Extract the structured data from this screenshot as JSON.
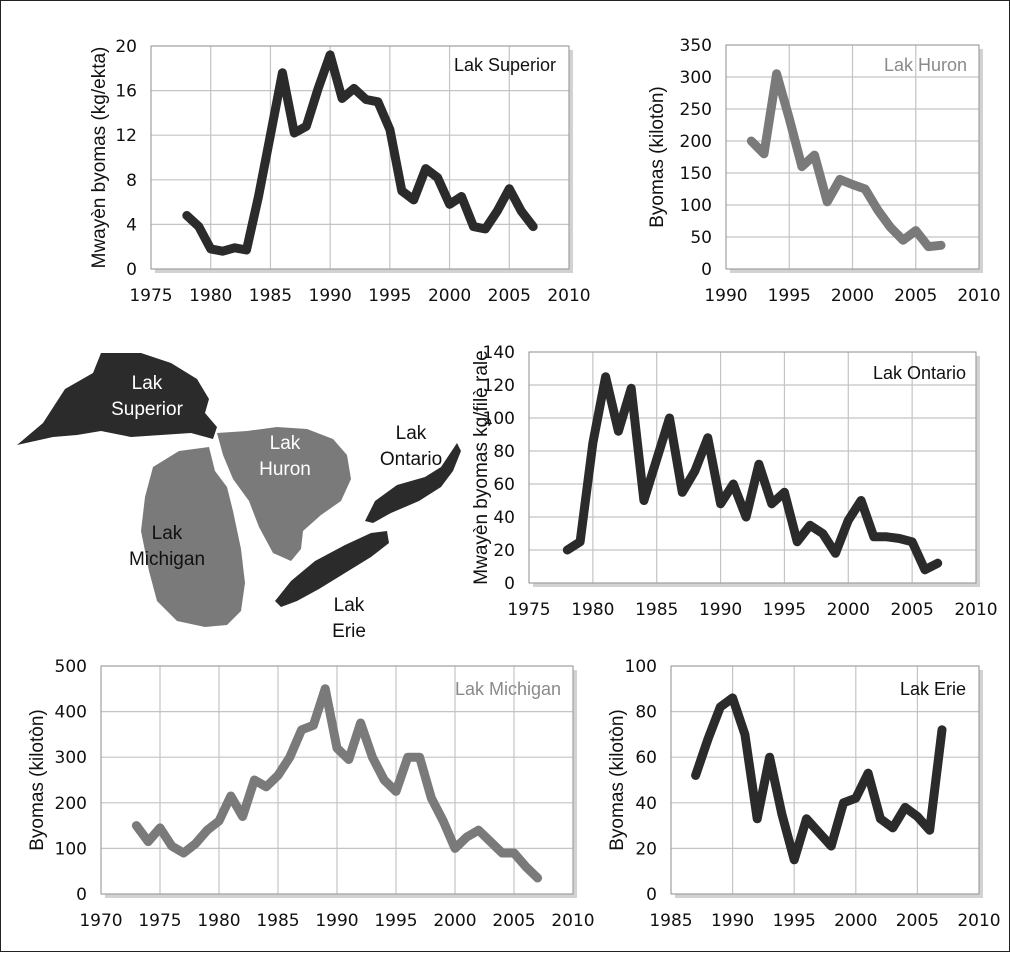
{
  "colors": {
    "dark": "#2b2b2b",
    "gray": "#7a7a7a",
    "grid": "#c4c4c4",
    "frameShadow": "#d2d2d2"
  },
  "map": {
    "labels": {
      "superior": [
        "Lak",
        "Superior"
      ],
      "huron": [
        "Lak",
        "Huron"
      ],
      "ontario": [
        "Lak",
        "Ontario"
      ],
      "michigan": [
        "Lak",
        "Michigan"
      ],
      "erie": [
        "Lak",
        "Erie"
      ]
    }
  },
  "chart_data": [
    {
      "id": "superior",
      "type": "line",
      "title": "Lak Superior",
      "ylabel": "Mwayèn byomas (kg/ekta)",
      "xlabel": "",
      "xlim": [
        1975,
        2010
      ],
      "ylim": [
        0,
        20
      ],
      "xticks": [
        1975,
        1980,
        1985,
        1990,
        1995,
        2000,
        2005,
        2010
      ],
      "yticks": [
        0,
        4,
        8,
        12,
        16,
        20
      ],
      "color": "#2b2b2b",
      "title_color": "#111111",
      "series": [
        {
          "x": [
            1978,
            1979,
            1980,
            1981,
            1982,
            1983,
            1984,
            1985,
            1986,
            1987,
            1988,
            1989,
            1990,
            1991,
            1992,
            1993,
            1994,
            1995,
            1996,
            1997,
            1998,
            1999,
            2000,
            2001,
            2002,
            2003,
            2004,
            2005,
            2006,
            2007
          ],
          "y": [
            4.8,
            3.8,
            1.8,
            1.6,
            1.9,
            1.7,
            6.5,
            12,
            17.6,
            12.2,
            12.8,
            16.2,
            19.2,
            15.3,
            16.2,
            15.2,
            15,
            12.5,
            7,
            6.2,
            9,
            8.2,
            5.8,
            6.5,
            3.8,
            3.6,
            5.2,
            7.2,
            5.2,
            3.8
          ]
        }
      ]
    },
    {
      "id": "huron",
      "type": "line",
      "title": "Lak Huron",
      "ylabel": "Byomas (kilotòn)",
      "xlabel": "",
      "xlim": [
        1990,
        2010
      ],
      "ylim": [
        0,
        350
      ],
      "xticks": [
        1990,
        1995,
        2000,
        2005,
        2010
      ],
      "yticks": [
        0,
        50,
        100,
        150,
        200,
        250,
        300,
        350
      ],
      "color": "#7a7a7a",
      "title_color": "#8a8a8a",
      "series": [
        {
          "x": [
            1992,
            1993,
            1994,
            1995,
            1996,
            1997,
            1998,
            1999,
            2000,
            2001,
            2002,
            2003,
            2004,
            2005,
            2006,
            2007
          ],
          "y": [
            200,
            180,
            305,
            235,
            160,
            178,
            105,
            140,
            132,
            125,
            92,
            65,
            45,
            60,
            35,
            37
          ]
        }
      ]
    },
    {
      "id": "ontario",
      "type": "line",
      "title": "Lak Ontario",
      "ylabel": "Mwayèn byomas kg/filè rale",
      "xlabel": "",
      "xlim": [
        1975,
        2010
      ],
      "ylim": [
        0,
        140
      ],
      "xticks": [
        1975,
        1980,
        1985,
        1990,
        1995,
        2000,
        2005,
        2010
      ],
      "yticks": [
        0,
        20,
        40,
        60,
        80,
        100,
        120,
        140
      ],
      "color": "#2b2b2b",
      "title_color": "#111111",
      "series": [
        {
          "x": [
            1978,
            1979,
            1980,
            1981,
            1982,
            1983,
            1984,
            1985,
            1986,
            1987,
            1988,
            1989,
            1990,
            1991,
            1992,
            1993,
            1994,
            1995,
            1996,
            1997,
            1998,
            1999,
            2000,
            2001,
            2002,
            2003,
            2004,
            2005,
            2006,
            2007
          ],
          "y": [
            20,
            25,
            85,
            125,
            92,
            118,
            50,
            75,
            100,
            55,
            68,
            88,
            48,
            60,
            40,
            72,
            48,
            55,
            25,
            35,
            30,
            18,
            38,
            50,
            28,
            28,
            27,
            25,
            8,
            12
          ]
        }
      ]
    },
    {
      "id": "michigan",
      "type": "line",
      "title": "Lak Michigan",
      "ylabel": "Byomas (kilotòn)",
      "xlabel": "",
      "xlim": [
        1970,
        2010
      ],
      "ylim": [
        0,
        500
      ],
      "xticks": [
        1970,
        1975,
        1980,
        1985,
        1990,
        1995,
        2000,
        2005,
        2010
      ],
      "yticks": [
        0,
        100,
        200,
        300,
        400,
        500
      ],
      "color": "#7a7a7a",
      "title_color": "#8a8a8a",
      "series": [
        {
          "x": [
            1973,
            1974,
            1975,
            1976,
            1977,
            1978,
            1979,
            1980,
            1981,
            1982,
            1983,
            1984,
            1985,
            1986,
            1987,
            1988,
            1989,
            1990,
            1991,
            1992,
            1993,
            1994,
            1995,
            1996,
            1997,
            1998,
            1999,
            2000,
            2001,
            2002,
            2003,
            2004,
            2005,
            2006,
            2007
          ],
          "y": [
            150,
            115,
            145,
            105,
            90,
            110,
            140,
            160,
            215,
            170,
            250,
            235,
            260,
            300,
            360,
            370,
            450,
            320,
            295,
            375,
            300,
            250,
            225,
            300,
            300,
            210,
            160,
            100,
            125,
            140,
            115,
            90,
            90,
            60,
            35
          ]
        }
      ]
    },
    {
      "id": "erie",
      "type": "line",
      "title": "Lak Erie",
      "ylabel": "Byomas (kilotòn)",
      "xlabel": "",
      "xlim": [
        1985,
        2010
      ],
      "ylim": [
        0,
        100
      ],
      "xticks": [
        1985,
        1990,
        1995,
        2000,
        2005,
        2010
      ],
      "yticks": [
        0,
        20,
        40,
        60,
        80,
        100
      ],
      "color": "#2b2b2b",
      "title_color": "#111111",
      "series": [
        {
          "x": [
            1987,
            1988,
            1989,
            1990,
            1991,
            1992,
            1993,
            1994,
            1995,
            1996,
            1997,
            1998,
            1999,
            2000,
            2001,
            2002,
            2003,
            2004,
            2005,
            2006,
            2007
          ],
          "y": [
            52,
            68,
            82,
            86,
            70,
            33,
            60,
            35,
            15,
            33,
            27,
            21,
            40,
            42,
            53,
            33,
            29,
            38,
            34,
            28,
            72
          ]
        }
      ]
    }
  ]
}
